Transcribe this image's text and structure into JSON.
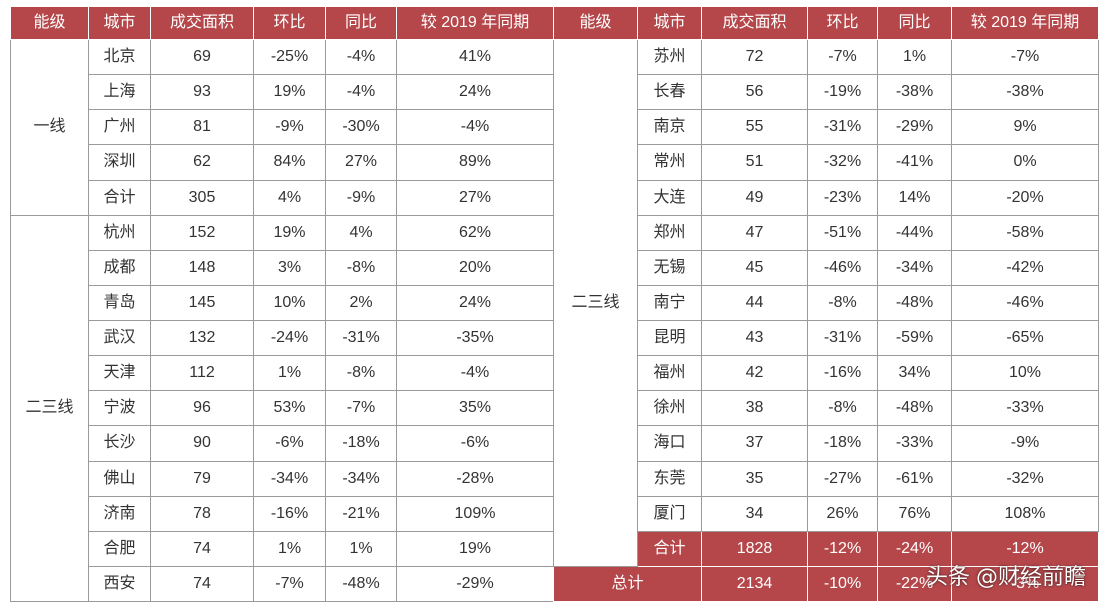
{
  "header": {
    "tier": "能级",
    "city": "城市",
    "area": "成交面积",
    "mom": "环比",
    "yoy": "同比",
    "vs2019": "较 2019 年同期"
  },
  "left_table": {
    "groups": [
      {
        "tier": "一线",
        "rows": [
          {
            "city": "北京",
            "area": "69",
            "mom": "-25%",
            "yoy": "-4%",
            "vs2019": "41%"
          },
          {
            "city": "上海",
            "area": "93",
            "mom": "19%",
            "yoy": "-4%",
            "vs2019": "24%"
          },
          {
            "city": "广州",
            "area": "81",
            "mom": "-9%",
            "yoy": "-30%",
            "vs2019": "-4%"
          },
          {
            "city": "深圳",
            "area": "62",
            "mom": "84%",
            "yoy": "27%",
            "vs2019": "89%"
          },
          {
            "city": "合计",
            "area": "305",
            "mom": "4%",
            "yoy": "-9%",
            "vs2019": "27%"
          }
        ]
      },
      {
        "tier": "二三线",
        "rows": [
          {
            "city": "杭州",
            "area": "152",
            "mom": "19%",
            "yoy": "4%",
            "vs2019": "62%"
          },
          {
            "city": "成都",
            "area": "148",
            "mom": "3%",
            "yoy": "-8%",
            "vs2019": "20%"
          },
          {
            "city": "青岛",
            "area": "145",
            "mom": "10%",
            "yoy": "2%",
            "vs2019": "24%"
          },
          {
            "city": "武汉",
            "area": "132",
            "mom": "-24%",
            "yoy": "-31%",
            "vs2019": "-35%"
          },
          {
            "city": "天津",
            "area": "112",
            "mom": "1%",
            "yoy": "-8%",
            "vs2019": "-4%"
          },
          {
            "city": "宁波",
            "area": "96",
            "mom": "53%",
            "yoy": "-7%",
            "vs2019": "35%"
          },
          {
            "city": "长沙",
            "area": "90",
            "mom": "-6%",
            "yoy": "-18%",
            "vs2019": "-6%"
          },
          {
            "city": "佛山",
            "area": "79",
            "mom": "-34%",
            "yoy": "-34%",
            "vs2019": "-28%"
          },
          {
            "city": "济南",
            "area": "78",
            "mom": "-16%",
            "yoy": "-21%",
            "vs2019": "109%"
          },
          {
            "city": "合肥",
            "area": "74",
            "mom": "1%",
            "yoy": "1%",
            "vs2019": "19%"
          },
          {
            "city": "西安",
            "area": "74",
            "mom": "-7%",
            "yoy": "-48%",
            "vs2019": "-29%"
          }
        ]
      }
    ]
  },
  "right_table": {
    "tier": "二三线",
    "rows": [
      {
        "city": "苏州",
        "area": "72",
        "mom": "-7%",
        "yoy": "1%",
        "vs2019": "-7%"
      },
      {
        "city": "长春",
        "area": "56",
        "mom": "-19%",
        "yoy": "-38%",
        "vs2019": "-38%"
      },
      {
        "city": "南京",
        "area": "55",
        "mom": "-31%",
        "yoy": "-29%",
        "vs2019": "9%"
      },
      {
        "city": "常州",
        "area": "51",
        "mom": "-32%",
        "yoy": "-41%",
        "vs2019": "0%"
      },
      {
        "city": "大连",
        "area": "49",
        "mom": "-23%",
        "yoy": "14%",
        "vs2019": "-20%"
      },
      {
        "city": "郑州",
        "area": "47",
        "mom": "-51%",
        "yoy": "-44%",
        "vs2019": "-58%"
      },
      {
        "city": "无锡",
        "area": "45",
        "mom": "-46%",
        "yoy": "-34%",
        "vs2019": "-42%"
      },
      {
        "city": "南宁",
        "area": "44",
        "mom": "-8%",
        "yoy": "-48%",
        "vs2019": "-46%"
      },
      {
        "city": "昆明",
        "area": "43",
        "mom": "-31%",
        "yoy": "-59%",
        "vs2019": "-65%"
      },
      {
        "city": "福州",
        "area": "42",
        "mom": "-16%",
        "yoy": "34%",
        "vs2019": "10%"
      },
      {
        "city": "徐州",
        "area": "38",
        "mom": "-8%",
        "yoy": "-48%",
        "vs2019": "-33%"
      },
      {
        "city": "海口",
        "area": "37",
        "mom": "-18%",
        "yoy": "-33%",
        "vs2019": "-9%"
      },
      {
        "city": "东莞",
        "area": "35",
        "mom": "-27%",
        "yoy": "-61%",
        "vs2019": "-32%"
      },
      {
        "city": "厦门",
        "area": "34",
        "mom": "26%",
        "yoy": "76%",
        "vs2019": "108%"
      }
    ],
    "subtotal": {
      "city": "合计",
      "area": "1828",
      "mom": "-12%",
      "yoy": "-24%",
      "vs2019": "-12%"
    },
    "total": {
      "label": "总计",
      "area": "2134",
      "mom": "-10%",
      "yoy": "-22%",
      "vs2019": "-3%"
    }
  },
  "watermark": {
    "source": "头条",
    "account": "@财经前瞻"
  },
  "colors": {
    "header_bg": "#b5474b",
    "header_text": "#ffffff",
    "border": "#9a9a9a"
  }
}
